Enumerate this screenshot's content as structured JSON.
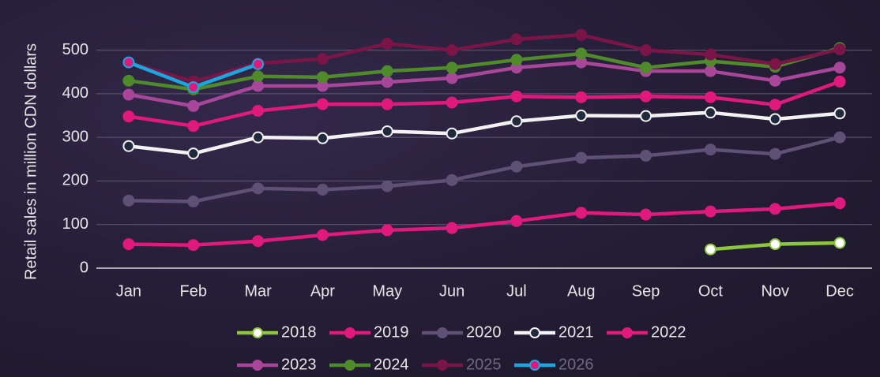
{
  "chart_data": {
    "type": "line",
    "y_axis_label": "Retail sales in million CDN dollars",
    "categories": [
      "Jan",
      "Feb",
      "Mar",
      "Apr",
      "May",
      "Jun",
      "Jul",
      "Aug",
      "Sep",
      "Oct",
      "Nov",
      "Dec"
    ],
    "ylim": [
      0,
      550
    ],
    "yticks": [
      0,
      100,
      200,
      300,
      400,
      500
    ],
    "grid": true,
    "series": [
      {
        "name": "2018",
        "color": "#8cc63f",
        "marker_color": "#ffffff",
        "values": [
          null,
          null,
          null,
          null,
          null,
          null,
          null,
          null,
          null,
          43,
          55,
          58
        ]
      },
      {
        "name": "2019",
        "color": "#e0197d",
        "marker_color": "#e0197d",
        "values": [
          55,
          53,
          62,
          76,
          87,
          92,
          108,
          127,
          123,
          130,
          136,
          149
        ]
      },
      {
        "name": "2020",
        "color": "#5e5175",
        "marker_color": "#5e5175",
        "values": [
          155,
          153,
          183,
          180,
          188,
          202,
          233,
          253,
          258,
          272,
          262,
          300
        ]
      },
      {
        "name": "2021",
        "color": "#f2f2f2",
        "marker_color": "#1f2a3c",
        "values": [
          280,
          263,
          300,
          298,
          314,
          309,
          337,
          350,
          349,
          357,
          342,
          355
        ]
      },
      {
        "name": "2022",
        "color": "#e0197d",
        "marker_color": "#e0197d",
        "values": [
          348,
          326,
          361,
          376,
          376,
          380,
          394,
          392,
          394,
          392,
          375,
          428
        ]
      },
      {
        "name": "2023",
        "color": "#a8479a",
        "marker_color": "#a8479a",
        "values": [
          398,
          372,
          418,
          418,
          427,
          436,
          460,
          472,
          452,
          452,
          430,
          460
        ]
      },
      {
        "name": "2024",
        "color": "#4f8a2b",
        "marker_color": "#4f8a2b",
        "values": [
          430,
          410,
          440,
          438,
          452,
          460,
          478,
          492,
          460,
          475,
          462,
          505
        ]
      },
      {
        "name": "2025",
        "color": "#7a1548",
        "marker_color": "#7a1548",
        "values": [
          472,
          428,
          470,
          480,
          515,
          500,
          525,
          535,
          500,
          490,
          468,
          502
        ]
      },
      {
        "name": "2026",
        "color": "#1aa7e0",
        "marker_color": "#e0197d",
        "values": [
          472,
          415,
          468,
          null,
          null,
          null,
          null,
          null,
          null,
          null,
          null,
          null
        ]
      }
    ]
  }
}
